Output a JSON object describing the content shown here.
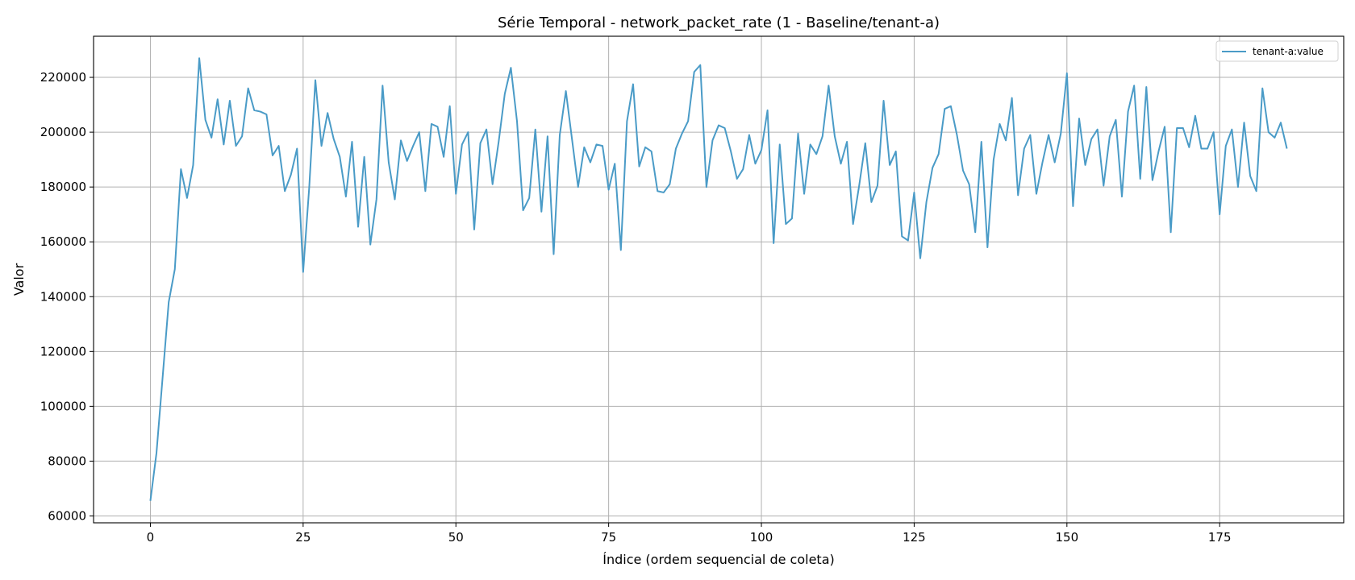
{
  "chart_data": {
    "type": "line",
    "title": "Série Temporal - network_packet_rate (1 - Baseline/tenant-a)",
    "xlabel": "Índice (ordem sequencial de coleta)",
    "ylabel": "Valor",
    "xlim": [
      -9.3,
      195.3
    ],
    "ylim": [
      57500,
      235000
    ],
    "xticks": [
      0,
      25,
      50,
      75,
      100,
      125,
      150,
      175
    ],
    "xtick_labels": [
      "0",
      "25",
      "50",
      "75",
      "100",
      "125",
      "150",
      "175"
    ],
    "yticks": [
      60000,
      80000,
      100000,
      120000,
      140000,
      160000,
      180000,
      200000,
      220000
    ],
    "ytick_labels": [
      "60000",
      "80000",
      "100000",
      "120000",
      "140000",
      "160000",
      "180000",
      "200000",
      "220000"
    ],
    "grid": true,
    "legend_position": "top-right",
    "series": [
      {
        "name": "tenant-a:value",
        "color": "#4a9bc7",
        "values": [
          65500,
          83000,
          110500,
          138000,
          150000,
          186500,
          176000,
          188000,
          227000,
          204500,
          198000,
          212000,
          195500,
          211500,
          195000,
          198500,
          216000,
          208000,
          207500,
          206500,
          191500,
          195000,
          178500,
          184500,
          194000,
          149000,
          180000,
          219000,
          195000,
          207000,
          197500,
          191000,
          176500,
          196500,
          165500,
          191000,
          159000,
          175500,
          217000,
          189000,
          175500,
          197000,
          189500,
          195000,
          200000,
          178500,
          203000,
          202000,
          191000,
          209500,
          177500,
          195500,
          200000,
          164500,
          196000,
          201000,
          181000,
          196500,
          214000,
          223500,
          204000,
          171500,
          176000,
          201000,
          171000,
          198500,
          155500,
          199000,
          215000,
          197500,
          180000,
          194500,
          189000,
          195500,
          195000,
          179000,
          188500,
          157000,
          204000,
          217500,
          187500,
          194500,
          193000,
          178500,
          178000,
          181000,
          194000,
          199500,
          204000,
          222000,
          224500,
          180000,
          197000,
          202500,
          201500,
          193000,
          183000,
          186500,
          199000,
          188500,
          193500,
          208000,
          159500,
          195500,
          166500,
          168500,
          199500,
          177500,
          195500,
          192000,
          198500,
          217000,
          198500,
          188500,
          196500,
          166500,
          180500,
          196000,
          174500,
          180500,
          211500,
          188000,
          193000,
          162000,
          160500,
          178000,
          154000,
          174500,
          187000,
          192000,
          208500,
          209500,
          199000,
          186000,
          181000,
          163500,
          196500,
          158000,
          190000,
          203000,
          197000,
          212500,
          177000,
          194000,
          199000,
          177500,
          189000,
          199000,
          189000,
          199500,
          221500,
          173000,
          205000,
          188000,
          197500,
          201000,
          180500,
          198500,
          204500,
          176500,
          207500,
          217000,
          183000,
          216500,
          182500,
          193000,
          202000,
          163500,
          201500,
          201500,
          194500,
          206000,
          194000,
          194000,
          200000,
          170000,
          195000,
          201000,
          180000,
          203500,
          184000,
          178500,
          216000,
          200000,
          198000,
          203500,
          194000
        ]
      }
    ]
  }
}
